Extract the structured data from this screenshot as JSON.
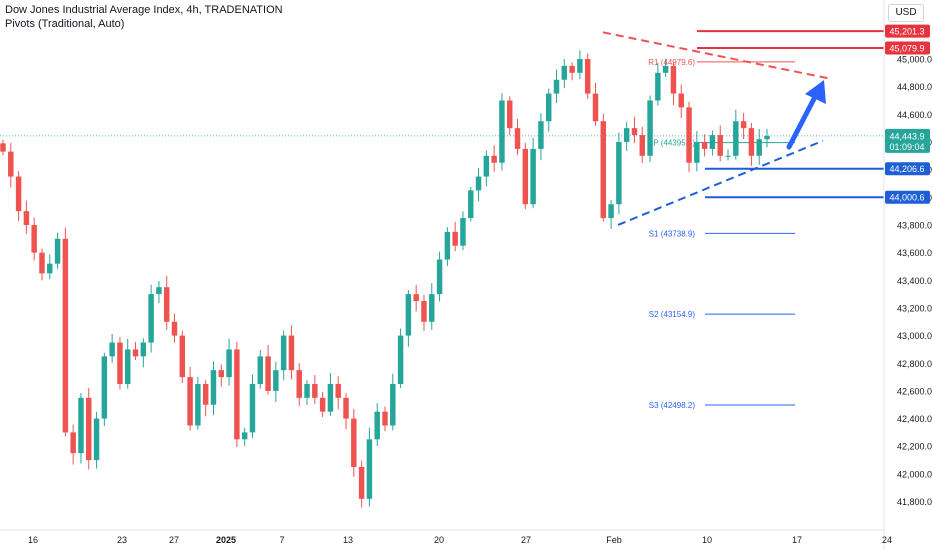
{
  "header": {
    "title": "Dow Jones Industrial Average Index, 4h, TRADENATION",
    "indicator": "Pivots (Traditional, Auto)"
  },
  "currency_label": "USD",
  "colors": {
    "up": "#26a69a",
    "down": "#ef5350",
    "resistance": "#e5333f",
    "support": "#1e5fd6",
    "arrow": "#2962ff",
    "pivot_p": "#26a69a",
    "pivot_r": "#ef5350",
    "pivot_s": "#2962ff"
  },
  "chart_data": {
    "type": "candlestick",
    "timeframe": "4h",
    "ylim": [
      41700,
      45300
    ],
    "y_ticks": [
      45000,
      44800,
      44600,
      44400,
      44200,
      44000,
      43800,
      43600,
      43400,
      43200,
      43000,
      42800,
      42600,
      42400,
      42200,
      42000,
      41800
    ],
    "x_ticks": [
      "16",
      "23",
      "27",
      "2025",
      "7",
      "13",
      "20",
      "27",
      "Feb",
      "10",
      "17",
      "24"
    ],
    "close_path": [
      44330,
      44150,
      43900,
      43800,
      43600,
      43450,
      43520,
      43700,
      42300,
      42150,
      42550,
      42100,
      42400,
      42850,
      42950,
      42650,
      42900,
      42850,
      42950,
      43300,
      43350,
      43100,
      43000,
      42700,
      42350,
      42650,
      42500,
      42750,
      42700,
      42900,
      42250,
      42300,
      42650,
      42850,
      42600,
      42750,
      43000,
      42750,
      42550,
      42650,
      42550,
      42450,
      42650,
      42550,
      42400,
      42050,
      41820,
      42250,
      42450,
      42350,
      42650,
      43000,
      43300,
      43250,
      43100,
      43300,
      43550,
      43750,
      43650,
      43850,
      44050,
      44150,
      44300,
      44250,
      44700,
      44500,
      44350,
      43950,
      44350,
      44550,
      44750,
      44850,
      44950,
      44900,
      45000,
      44750,
      44550,
      43850,
      43950,
      44400,
      44500,
      44450,
      44300,
      44700,
      44900,
      44950,
      44750,
      44650,
      44250,
      44400,
      44350,
      44450,
      44300,
      44300,
      44550,
      44500,
      44300,
      44420,
      44444
    ],
    "last_price": "44,443.9",
    "countdown": "01:09:04",
    "horizontal_levels": [
      {
        "label": "45,201.3",
        "value": 45201.3,
        "color": "#e5333f"
      },
      {
        "label": "45,079.9",
        "value": 45079.9,
        "color": "#e5333f"
      },
      {
        "label": "44,206.6",
        "value": 44206.6,
        "color": "#1e5fd6"
      },
      {
        "label": "44,000.6",
        "value": 44000.6,
        "color": "#1e5fd6"
      }
    ],
    "pivots": [
      {
        "label": "R1 (44979.6)",
        "value": 44979.6,
        "kind": "r"
      },
      {
        "label": "P (44395.6)",
        "value": 44395.6,
        "kind": "p"
      },
      {
        "label": "S1 (43738.9)",
        "value": 43738.9,
        "kind": "s"
      },
      {
        "label": "S2 (43154.9)",
        "value": 43154.9,
        "kind": "s"
      },
      {
        "label": "S3 (42498.2)",
        "value": 42498.2,
        "kind": "s"
      }
    ],
    "trendlines": {
      "upper": [
        45070,
        44920
      ],
      "lower": [
        43800,
        44380
      ]
    },
    "ylabel": "",
    "xlabel": ""
  }
}
